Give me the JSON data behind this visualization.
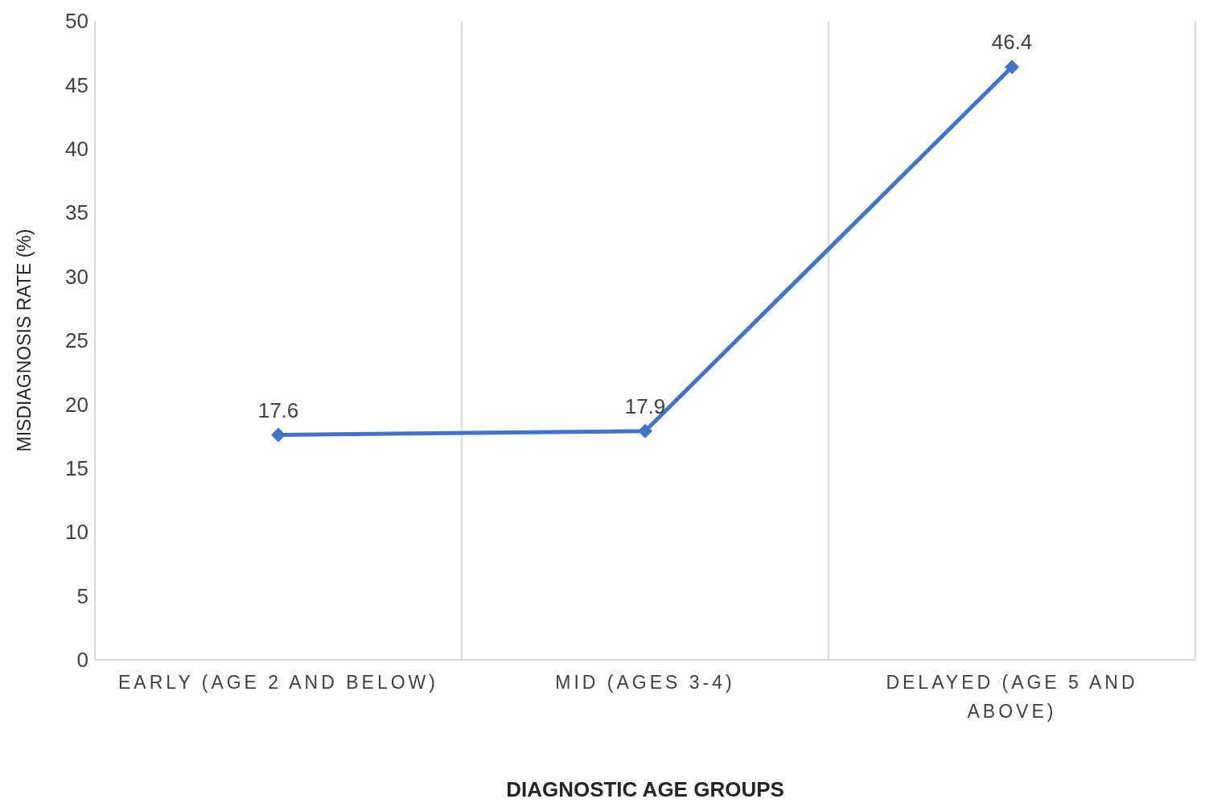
{
  "chart_data": {
    "type": "line",
    "xlabel": "DIAGNOSTIC AGE GROUPS",
    "ylabel": "MISDIAGNOSIS RATE (%)",
    "categories": [
      "EARLY (AGE 2 AND BELOW)",
      "MID (AGES 3-4)",
      "DELAYED (AGE 5 AND ABOVE)"
    ],
    "series": [
      {
        "color": "#4472c4",
        "values": [
          17.6,
          17.9,
          46.4
        ]
      }
    ],
    "ylim": [
      0,
      50
    ],
    "yticks": [
      0,
      5,
      10,
      15,
      20,
      25,
      30,
      35,
      40,
      45,
      50
    ],
    "grid": "x",
    "data_labels": true,
    "marker": "diamond",
    "line_style": "solid"
  }
}
